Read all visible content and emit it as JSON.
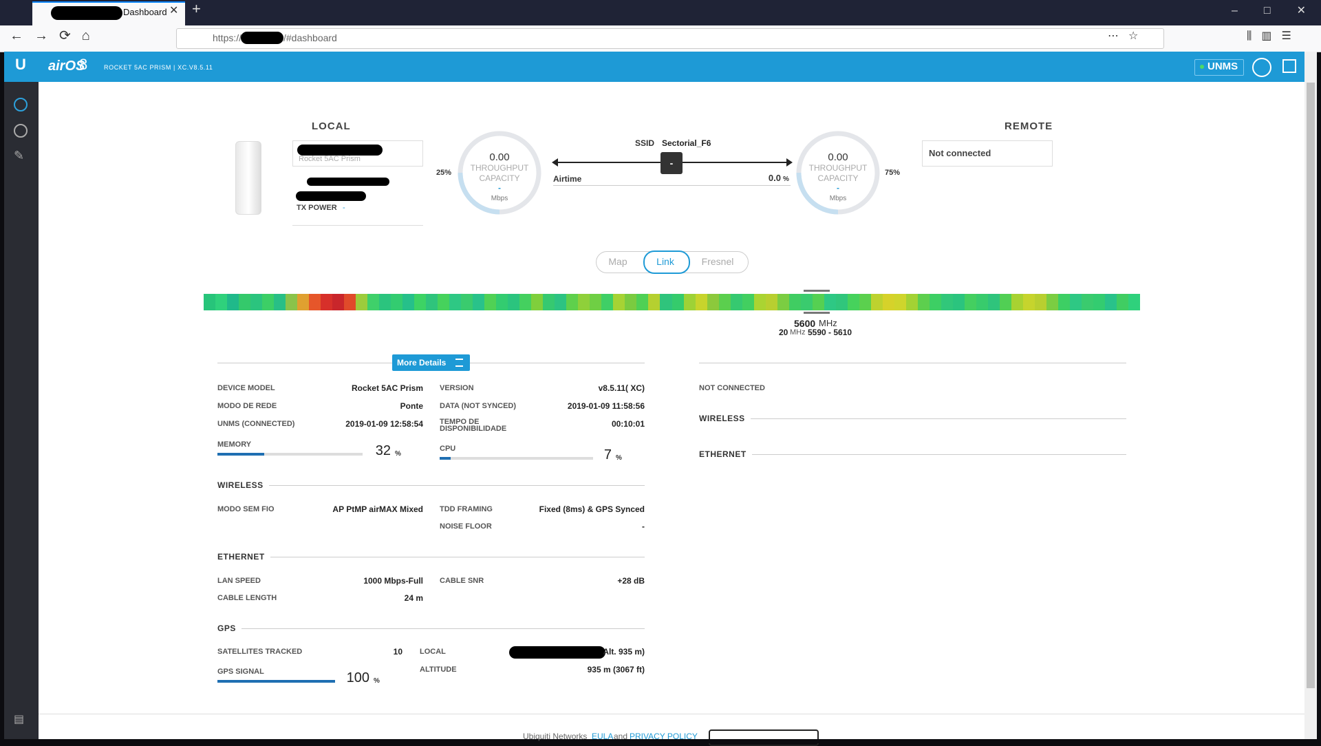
{
  "browser": {
    "tab_title": "Dashboard",
    "url_prefix": "https://",
    "url_suffix": "/#dashboard"
  },
  "header": {
    "brand": "airOS",
    "brand_version": "8",
    "device": "ROCKET 5AC PRISM | XC.V8.5.11",
    "unms": "UNMS"
  },
  "local": {
    "title": "LOCAL",
    "model": "Rocket 5AC Prism",
    "tx_power_label": "TX POWER",
    "tx_power_value": "-",
    "gauge": {
      "value": "0.00",
      "label_1": "THROUGHPUT",
      "label_2": "CAPACITY",
      "dash": "-",
      "unit": "Mbps",
      "chain": "25%"
    }
  },
  "link": {
    "ssid_label": "SSID",
    "ssid": "Sectorial_F6",
    "button": "-",
    "airtime_label": "Airtime",
    "airtime_value": "0.0",
    "airtime_unit": "%"
  },
  "remote": {
    "title": "REMOTE",
    "status": "Not connected",
    "gauge": {
      "value": "0.00",
      "label_1": "THROUGHPUT",
      "label_2": "CAPACITY",
      "dash": "-",
      "unit": "Mbps",
      "chain": "75%"
    }
  },
  "tabs": [
    "Map",
    "Link",
    "Fresnel"
  ],
  "spectrum": {
    "frequency": "5600",
    "frequency_unit": "MHz",
    "width": "20",
    "width_unit": "MHz",
    "range": "5590 - 5610",
    "colors": [
      "#27c47a",
      "#2fd17c",
      "#20b98a",
      "#34c96b",
      "#2bc47e",
      "#3ccf66",
      "#28bf86",
      "#8bc34a",
      "#e0a030",
      "#e6562a",
      "#d7302a",
      "#c9262b",
      "#e04a2a",
      "#9ccc3c",
      "#3fd06a",
      "#2bc47e",
      "#33cc70",
      "#26c08a",
      "#3dd364",
      "#2fc47c",
      "#46d25c",
      "#2ec884",
      "#3acb6e",
      "#29c28a",
      "#50d155",
      "#33cc70",
      "#2bc47e",
      "#44d05f",
      "#7fcf3c",
      "#36c970",
      "#2dc382",
      "#5fd04c",
      "#8fd03a",
      "#6fcf44",
      "#3fcf66",
      "#a6d334",
      "#7acb40",
      "#4fd055",
      "#b5d030",
      "#2fc47c",
      "#35cb6c",
      "#9ed236",
      "#c7d42c",
      "#8cc93c",
      "#5bcf4e",
      "#36c970",
      "#42cf60",
      "#aad432",
      "#b8cf30",
      "#7bcd42",
      "#40cd62",
      "#3acb6e",
      "#55d052",
      "#2ec884",
      "#30c67c",
      "#46d25c",
      "#5bd04e",
      "#bdd22f",
      "#d6d22a",
      "#cfd52c",
      "#a3d234",
      "#5dcf4e",
      "#3dcf64",
      "#31c77a",
      "#2bc47e",
      "#44cf60",
      "#38cb6c",
      "#2fc47c",
      "#51cf54",
      "#a8d232",
      "#c6d42d",
      "#b8cf30",
      "#7bcd42",
      "#3dcf64",
      "#2ec884",
      "#3acb6e",
      "#33cc70",
      "#29c28a",
      "#40cd62",
      "#2fd17c"
    ]
  },
  "details": {
    "button": "More Details",
    "general_left": [
      [
        "DEVICE MODEL",
        "Rocket 5AC Prism"
      ],
      [
        "MODO DE REDE",
        "Ponte"
      ],
      [
        "UNMS (CONNECTED)",
        "2019-01-09 12:58:54"
      ]
    ],
    "general_right": [
      [
        "VERSION",
        "v8.5.11( XC)"
      ],
      [
        "DATA (NOT SYNCED)",
        "2019-01-09 11:58:56"
      ],
      [
        "TEMPO DE DISPONIBILIDADE",
        "00:10:01"
      ]
    ],
    "memory": {
      "label": "MEMORY",
      "value": 32,
      "unit": "%"
    },
    "cpu": {
      "label": "CPU",
      "value": 7,
      "unit": "%"
    },
    "wireless_title": "WIRELESS",
    "wireless_left": [
      [
        "MODO SEM FIO",
        "AP PtMP airMAX Mixed"
      ]
    ],
    "wireless_right": [
      [
        "TDD FRAMING",
        "Fixed (8ms) & GPS Synced"
      ],
      [
        "NOISE FLOOR",
        "-"
      ]
    ],
    "ethernet_title": "ETHERNET",
    "ethernet_left": [
      [
        "LAN SPEED",
        "1000 Mbps-Full"
      ],
      [
        "CABLE LENGTH",
        "24 m"
      ]
    ],
    "ethernet_right": [
      [
        "CABLE SNR",
        "+28 dB"
      ]
    ],
    "gps_title": "GPS",
    "satellites": [
      "SATELLITES TRACKED",
      "10"
    ],
    "gps_signal": {
      "label": "GPS SIGNAL",
      "value": 100,
      "unit": "%"
    },
    "gps_right": [
      [
        "LOCAL",
        "Alt. 935 m)"
      ],
      [
        "ALTITUDE",
        "935 m (3067 ft)"
      ]
    ]
  },
  "remote_details": {
    "status": "NOT CONNECTED",
    "wireless_title": "WIRELESS",
    "ethernet_title": "ETHERNET"
  },
  "footer": {
    "company": "Ubiquiti Networks",
    "eula": "EULA",
    "and": "and",
    "privacy": "PRIVACY POLICY"
  }
}
